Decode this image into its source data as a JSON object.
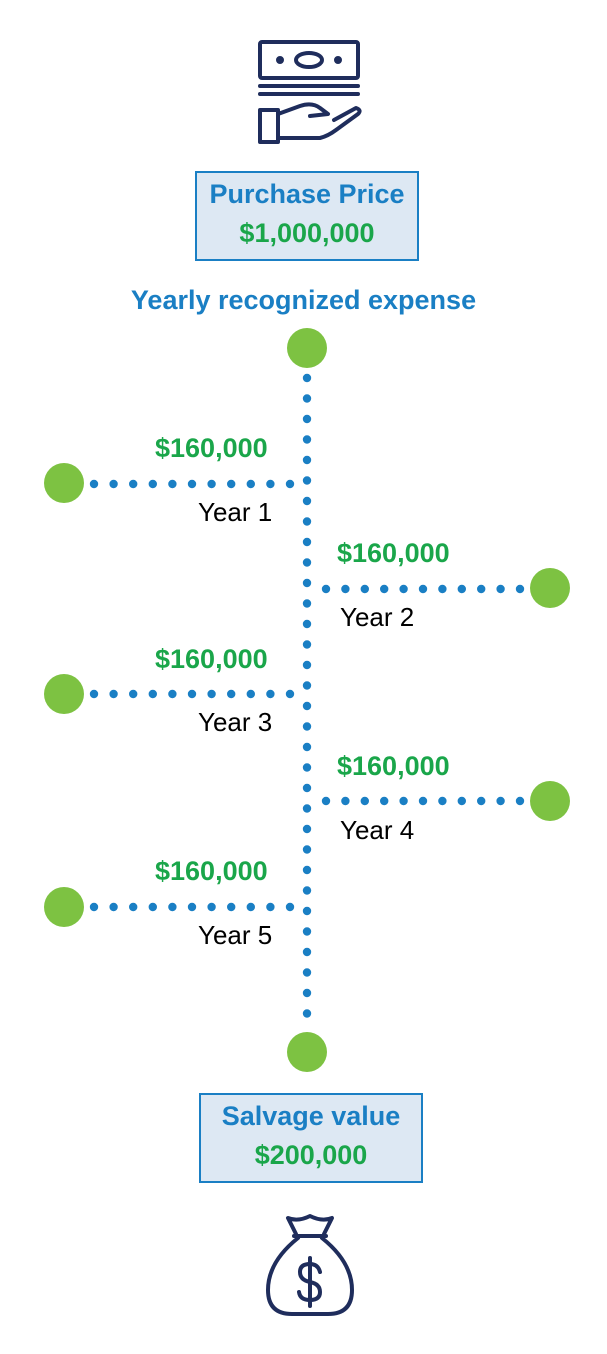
{
  "colors": {
    "accent_blue": "#1a7fc4",
    "money_green": "#1aa64a",
    "node_green": "#7dc242",
    "icon_navy": "#1f2d5c",
    "box_fill": "#dde8f3"
  },
  "purchase": {
    "icon": "cash-in-hand-icon",
    "title": "Purchase Price",
    "value": "$1,000,000"
  },
  "heading": "Yearly recognized expense",
  "years": [
    {
      "amount": "$160,000",
      "label": "Year 1",
      "side": "left"
    },
    {
      "amount": "$160,000",
      "label": "Year 2",
      "side": "right"
    },
    {
      "amount": "$160,000",
      "label": "Year 3",
      "side": "left"
    },
    {
      "amount": "$160,000",
      "label": "Year 4",
      "side": "right"
    },
    {
      "amount": "$160,000",
      "label": "Year 5",
      "side": "left"
    }
  ],
  "salvage": {
    "title": "Salvage value",
    "value": "$200,000",
    "icon": "money-bag-icon"
  }
}
